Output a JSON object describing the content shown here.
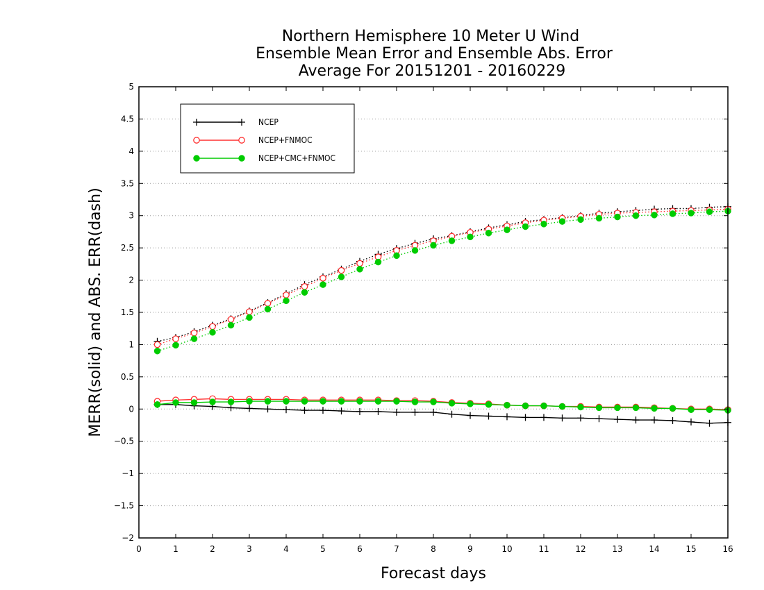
{
  "chart_data": {
    "type": "line",
    "title": [
      "Northern Hemisphere 10 Meter U Wind",
      "Ensemble Mean Error and Ensemble Abs. Error",
      "Average For 20151201 - 20160229"
    ],
    "xlabel": "Forecast days",
    "ylabel": "MERR(solid) and ABS. ERR(dash)",
    "xlim": [
      0,
      16
    ],
    "ylim": [
      -2,
      5
    ],
    "xticks": [
      "0",
      "1",
      "2",
      "3",
      "4",
      "5",
      "6",
      "7",
      "8",
      "9",
      "10",
      "11",
      "12",
      "13",
      "14",
      "15",
      "16"
    ],
    "yticks": [
      "5",
      "4.5",
      "4",
      "3.5",
      "3",
      "2.5",
      "2",
      "1.5",
      "1",
      "0.5",
      "0",
      "−0.5",
      "−1",
      "−1.5",
      "−2"
    ],
    "grid": "dotted horizontal",
    "legend_position": "top-left",
    "x": [
      0.5,
      1,
      1.5,
      2,
      2.5,
      3,
      3.5,
      4,
      4.5,
      5,
      5.5,
      6,
      6.5,
      7,
      7.5,
      8,
      8.5,
      9,
      9.5,
      10,
      10.5,
      11,
      11.5,
      12,
      12.5,
      13,
      13.5,
      14,
      14.5,
      15,
      15.5,
      16
    ],
    "series": [
      {
        "name": "NCEP",
        "color": "#000000",
        "marker": "plus",
        "merr": [
          0.07,
          0.07,
          0.05,
          0.04,
          0.02,
          0.01,
          0.0,
          -0.01,
          -0.02,
          -0.02,
          -0.03,
          -0.04,
          -0.04,
          -0.05,
          -0.05,
          -0.05,
          -0.08,
          -0.1,
          -0.11,
          -0.12,
          -0.13,
          -0.13,
          -0.14,
          -0.14,
          -0.15,
          -0.16,
          -0.17,
          -0.17,
          -0.18,
          -0.2,
          -0.22,
          -0.21
        ],
        "abs_err": [
          1.05,
          1.11,
          1.2,
          1.3,
          1.4,
          1.52,
          1.65,
          1.79,
          1.93,
          2.05,
          2.17,
          2.29,
          2.4,
          2.49,
          2.57,
          2.64,
          2.69,
          2.75,
          2.81,
          2.86,
          2.91,
          2.94,
          2.97,
          3.0,
          3.04,
          3.06,
          3.08,
          3.1,
          3.11,
          3.11,
          3.13,
          3.14
        ]
      },
      {
        "name": "NCEP+FNMOC",
        "color": "#ff3030",
        "marker": "open-circle",
        "merr": [
          0.12,
          0.14,
          0.15,
          0.16,
          0.15,
          0.15,
          0.15,
          0.15,
          0.14,
          0.14,
          0.14,
          0.14,
          0.14,
          0.13,
          0.13,
          0.12,
          0.1,
          0.09,
          0.08,
          0.06,
          0.05,
          0.05,
          0.04,
          0.04,
          0.03,
          0.03,
          0.03,
          0.02,
          0.01,
          0.0,
          0.0,
          -0.01
        ],
        "abs_err": [
          1.0,
          1.09,
          1.18,
          1.28,
          1.39,
          1.51,
          1.64,
          1.77,
          1.9,
          2.03,
          2.15,
          2.26,
          2.36,
          2.46,
          2.54,
          2.61,
          2.68,
          2.74,
          2.79,
          2.84,
          2.89,
          2.93,
          2.96,
          2.99,
          3.02,
          3.04,
          3.05,
          3.06,
          3.07,
          3.08,
          3.09,
          3.1
        ]
      },
      {
        "name": "NCEP+CMC+FNMOC",
        "color": "#00cc00",
        "marker": "filled-circle",
        "merr": [
          0.07,
          0.1,
          0.1,
          0.11,
          0.11,
          0.12,
          0.12,
          0.12,
          0.12,
          0.12,
          0.12,
          0.12,
          0.12,
          0.12,
          0.11,
          0.11,
          0.09,
          0.08,
          0.07,
          0.06,
          0.05,
          0.05,
          0.04,
          0.03,
          0.02,
          0.02,
          0.02,
          0.01,
          0.01,
          -0.01,
          -0.01,
          -0.02
        ],
        "abs_err": [
          0.9,
          0.99,
          1.09,
          1.19,
          1.3,
          1.42,
          1.55,
          1.68,
          1.81,
          1.93,
          2.05,
          2.17,
          2.28,
          2.38,
          2.46,
          2.54,
          2.61,
          2.67,
          2.73,
          2.78,
          2.83,
          2.87,
          2.91,
          2.94,
          2.96,
          2.98,
          3.0,
          3.01,
          3.03,
          3.04,
          3.06,
          3.07
        ]
      }
    ]
  }
}
